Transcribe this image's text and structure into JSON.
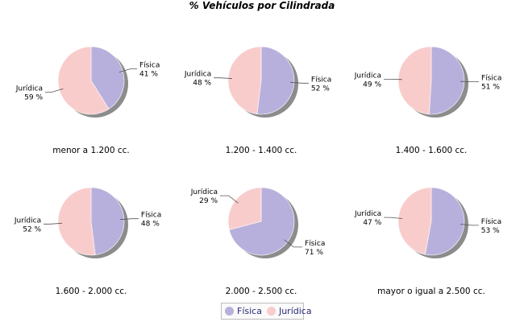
{
  "chart_data": {
    "type": "pie",
    "title": "% Vehículos por Cilindrada",
    "legend": {
      "position": "bottom-center",
      "entries": [
        {
          "name": "Física",
          "color": "#b8b0dc"
        },
        {
          "name": "Jurídica",
          "color": "#f9cccc"
        }
      ]
    },
    "colors": {
      "fisica": "#b8b0dc",
      "juridica": "#f9cccc",
      "shadow": "#8c8c8c"
    },
    "pies": [
      {
        "category": "menor a 1.200 cc.",
        "series": [
          {
            "name": "Física",
            "label": "Física",
            "value": 41,
            "value_label": "41 %"
          },
          {
            "name": "Jurídica",
            "label": "Jurídica",
            "value": 59,
            "value_label": "59 %"
          }
        ]
      },
      {
        "category": "1.200 - 1.400 cc.",
        "series": [
          {
            "name": "Física",
            "label": "Física",
            "value": 52,
            "value_label": "52 %"
          },
          {
            "name": "Jurídica",
            "label": "Jurídica",
            "value": 48,
            "value_label": "48 %"
          }
        ]
      },
      {
        "category": "1.400 - 1.600 cc.",
        "series": [
          {
            "name": "Física",
            "label": "Física",
            "value": 51,
            "value_label": "51 %"
          },
          {
            "name": "Jurídica",
            "label": "Jurídica",
            "value": 49,
            "value_label": "49 %"
          }
        ]
      },
      {
        "category": "1.600 - 2.000 cc.",
        "series": [
          {
            "name": "Física",
            "label": "Física",
            "value": 48,
            "value_label": "48 %"
          },
          {
            "name": "Jurídica",
            "label": "Jurídica",
            "value": 52,
            "value_label": "52 %"
          }
        ]
      },
      {
        "category": "2.000 - 2.500 cc.",
        "series": [
          {
            "name": "Física",
            "label": "Física",
            "value": 71,
            "value_label": "71 %"
          },
          {
            "name": "Jurídica",
            "label": "Jurídica",
            "value": 29,
            "value_label": "29 %"
          }
        ]
      },
      {
        "category": "mayor o igual a 2.500 cc.",
        "series": [
          {
            "name": "Física",
            "label": "Física",
            "value": 53,
            "value_label": "53 %"
          },
          {
            "name": "Jurídica",
            "label": "Jurídica",
            "value": 47,
            "value_label": "47 %"
          }
        ]
      }
    ]
  }
}
